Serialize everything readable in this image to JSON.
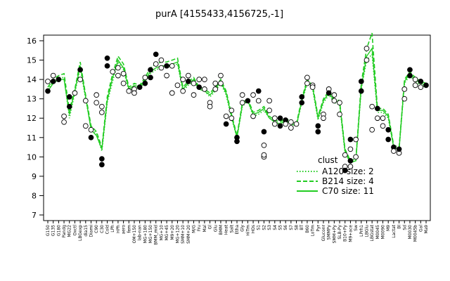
{
  "chart_data": {
    "type": "line",
    "title": "purA [4155433,4156725,-1]",
    "xlabel": "",
    "ylabel": "",
    "ylim": [
      7,
      16
    ],
    "yticks": [
      7,
      8,
      9,
      10,
      11,
      12,
      13,
      14,
      15,
      16
    ],
    "grid": false,
    "legend_position": "right-bottom (inside)",
    "categories": [
      "G150",
      "G135",
      "G180",
      "Pandg",
      "MG22",
      "Oxctl",
      "LBGexp",
      "dia15",
      "Diami",
      "C90",
      "C30",
      "Cold",
      "LPh",
      "HPh",
      "aero",
      "fem",
      "OM+150",
      "lab-nan",
      "MG+180",
      "MG+150",
      "BMM_mid",
      "MG+10",
      "MG+45",
      "M9+20",
      "MG+120",
      "SMM+10",
      "SMM+20",
      "M/G",
      "Fru",
      "Mal",
      "Gl",
      "Glu",
      "BMM",
      "Heat",
      "Salt",
      "Etha",
      "Gly",
      "HiTm",
      "HOs",
      "S1",
      "S2",
      "S3",
      "S4",
      "S5",
      "S6",
      "S7",
      "S8",
      "BT",
      "B60",
      "LoTm",
      "Pyr",
      "Gluconr",
      "SMMPy",
      "SMM+Py",
      "SLB-Py",
      "B10+Py",
      "M9+ace",
      "Sw",
      "LPrh1",
      "LBGlu",
      "LBGstat",
      "M0045",
      "M0090",
      "M9",
      "Lactat",
      "BI",
      "Sd",
      "M0030",
      "M0045b",
      "Gal",
      "Ma9"
    ],
    "cluster_label": "clust",
    "series": [
      {
        "name": "A120 size: 2",
        "color": "#22cc22",
        "style": "dotted",
        "values": [
          13.5,
          13.9,
          14.1,
          14.1,
          12.0,
          13.3,
          14.6,
          13.0,
          11.5,
          11.2,
          10.3,
          12.8,
          13.9,
          14.9,
          14.5,
          13.4,
          13.6,
          13.5,
          13.9,
          14.3,
          14.5,
          14.6,
          14.6,
          14.7,
          14.8,
          13.4,
          13.7,
          13.9,
          13.5,
          13.4,
          13.1,
          13.4,
          13.8,
          13.2,
          12.0,
          11.0,
          12.6,
          12.9,
          12.1,
          12.2,
          12.4,
          12.0,
          11.8,
          11.7,
          11.9,
          11.7,
          11.6,
          12.8,
          13.8,
          13.5,
          11.9,
          12.8,
          13.2,
          12.8,
          12.7,
          10.2,
          9.7,
          9.8,
          13.5,
          15.0,
          15.3,
          12.3,
          12.3,
          12.0,
          10.5,
          10.4,
          13.8,
          14.2,
          13.9,
          13.7,
          13.6
        ]
      },
      {
        "name": "B214 size: 4",
        "color": "#22cc22",
        "style": "dashed",
        "values": [
          13.6,
          14.0,
          14.2,
          14.3,
          12.4,
          13.5,
          14.9,
          13.2,
          11.6,
          11.3,
          10.5,
          13.1,
          14.3,
          15.2,
          14.8,
          13.6,
          13.8,
          13.7,
          14.1,
          14.6,
          14.8,
          14.9,
          14.9,
          15.0,
          15.1,
          13.6,
          13.9,
          14.1,
          13.6,
          13.5,
          13.3,
          13.6,
          14.0,
          13.4,
          12.2,
          11.1,
          12.8,
          13.0,
          12.3,
          12.4,
          12.6,
          12.1,
          11.9,
          11.8,
          12.0,
          11.8,
          11.7,
          13.0,
          14.0,
          13.7,
          12.1,
          13.0,
          13.4,
          13.0,
          12.9,
          10.4,
          9.8,
          9.9,
          13.8,
          15.6,
          16.4,
          12.5,
          12.5,
          12.2,
          10.6,
          10.5,
          14.0,
          14.4,
          14.1,
          13.9,
          13.8
        ]
      },
      {
        "name": "C70 size: 11",
        "color": "#22cc22",
        "style": "solid",
        "values": [
          13.4,
          13.8,
          14.0,
          14.0,
          12.2,
          13.4,
          14.7,
          13.1,
          11.4,
          11.1,
          10.4,
          12.9,
          14.1,
          15.0,
          14.6,
          13.5,
          13.7,
          13.6,
          14.0,
          14.4,
          14.6,
          14.7,
          14.7,
          14.8,
          14.9,
          13.5,
          13.8,
          14.0,
          13.5,
          13.4,
          13.2,
          13.5,
          13.9,
          13.3,
          12.1,
          11.0,
          12.7,
          12.9,
          12.2,
          12.3,
          12.5,
          12.0,
          11.8,
          11.7,
          11.9,
          11.7,
          11.6,
          12.9,
          13.9,
          13.6,
          12.0,
          12.9,
          13.3,
          12.9,
          12.8,
          10.3,
          9.7,
          9.8,
          13.6,
          15.2,
          15.6,
          12.4,
          12.4,
          12.1,
          10.5,
          10.4,
          13.9,
          14.3,
          14.0,
          13.8,
          13.7
        ]
      }
    ],
    "points": [
      {
        "x": "G150",
        "y": 13.4,
        "fill": "black"
      },
      {
        "x": "G150",
        "y": 13.9,
        "fill": "white"
      },
      {
        "x": "G135",
        "y": 14.2,
        "fill": "white"
      },
      {
        "x": "G135",
        "y": 13.9,
        "fill": "black"
      },
      {
        "x": "G180",
        "y": 14.0,
        "fill": "black"
      },
      {
        "x": "Pandg",
        "y": 12.1,
        "fill": "white"
      },
      {
        "x": "Pandg",
        "y": 11.8,
        "fill": "white"
      },
      {
        "x": "MG22",
        "y": 12.6,
        "fill": "black"
      },
      {
        "x": "MG22",
        "y": 13.1,
        "fill": "black"
      },
      {
        "x": "Oxctl",
        "y": 13.3,
        "fill": "white"
      },
      {
        "x": "LBGexp",
        "y": 14.5,
        "fill": "black"
      },
      {
        "x": "LBGexp",
        "y": 14.0,
        "fill": "white"
      },
      {
        "x": "dia15",
        "y": 12.9,
        "fill": "white"
      },
      {
        "x": "dia15",
        "y": 11.6,
        "fill": "white"
      },
      {
        "x": "Diami",
        "y": 11.4,
        "fill": "white"
      },
      {
        "x": "Diami",
        "y": 11.0,
        "fill": "black"
      },
      {
        "x": "C90",
        "y": 13.2,
        "fill": "white"
      },
      {
        "x": "C90",
        "y": 12.8,
        "fill": "white"
      },
      {
        "x": "C30",
        "y": 9.9,
        "fill": "black"
      },
      {
        "x": "C30",
        "y": 9.6,
        "fill": "black"
      },
      {
        "x": "C30",
        "y": 12.6,
        "fill": "white"
      },
      {
        "x": "C30",
        "y": 12.3,
        "fill": "white"
      },
      {
        "x": "Cold",
        "y": 14.7,
        "fill": "black"
      },
      {
        "x": "Cold",
        "y": 15.1,
        "fill": "black"
      },
      {
        "x": "LPh",
        "y": 14.4,
        "fill": "white"
      },
      {
        "x": "HPh",
        "y": 14.6,
        "fill": "white"
      },
      {
        "x": "HPh",
        "y": 14.2,
        "fill": "white"
      },
      {
        "x": "aero",
        "y": 13.8,
        "fill": "white"
      },
      {
        "x": "aero",
        "y": 14.3,
        "fill": "white"
      },
      {
        "x": "fem",
        "y": 13.4,
        "fill": "white"
      },
      {
        "x": "OM+150",
        "y": 13.5,
        "fill": "white"
      },
      {
        "x": "OM+150",
        "y": 13.3,
        "fill": "white"
      },
      {
        "x": "lab-nan",
        "y": 13.6,
        "fill": "black"
      },
      {
        "x": "MG+180",
        "y": 14.1,
        "fill": "white"
      },
      {
        "x": "MG+180",
        "y": 13.8,
        "fill": "black"
      },
      {
        "x": "MG+150",
        "y": 14.5,
        "fill": "black"
      },
      {
        "x": "MG+150",
        "y": 14.1,
        "fill": "black"
      },
      {
        "x": "BMM_mid",
        "y": 15.3,
        "fill": "black"
      },
      {
        "x": "BMM_mid",
        "y": 14.8,
        "fill": "white"
      },
      {
        "x": "MG+10",
        "y": 15.0,
        "fill": "white"
      },
      {
        "x": "MG+10",
        "y": 14.6,
        "fill": "white"
      },
      {
        "x": "MG+45",
        "y": 14.7,
        "fill": "black"
      },
      {
        "x": "MG+45",
        "y": 14.2,
        "fill": "white"
      },
      {
        "x": "M9+20",
        "y": 14.7,
        "fill": "white"
      },
      {
        "x": "M9+20",
        "y": 13.3,
        "fill": "white"
      },
      {
        "x": "MG+120",
        "y": 13.7,
        "fill": "white"
      },
      {
        "x": "SMM+10",
        "y": 14.0,
        "fill": "white"
      },
      {
        "x": "SMM+10",
        "y": 13.4,
        "fill": "white"
      },
      {
        "x": "SMM+20",
        "y": 13.9,
        "fill": "black"
      },
      {
        "x": "SMM+20",
        "y": 14.2,
        "fill": "white"
      },
      {
        "x": "M/G",
        "y": 13.8,
        "fill": "white"
      },
      {
        "x": "M/G",
        "y": 13.2,
        "fill": "white"
      },
      {
        "x": "Fru",
        "y": 14.0,
        "fill": "white"
      },
      {
        "x": "Fru",
        "y": 13.6,
        "fill": "black"
      },
      {
        "x": "Mal",
        "y": 14.0,
        "fill": "white"
      },
      {
        "x": "Mal",
        "y": 13.5,
        "fill": "white"
      },
      {
        "x": "Gl",
        "y": 12.8,
        "fill": "white"
      },
      {
        "x": "Gl",
        "y": 12.6,
        "fill": "white"
      },
      {
        "x": "Glu",
        "y": 13.8,
        "fill": "white"
      },
      {
        "x": "Glu",
        "y": 13.5,
        "fill": "white"
      },
      {
        "x": "BMM",
        "y": 14.2,
        "fill": "white"
      },
      {
        "x": "BMM",
        "y": 13.8,
        "fill": "white"
      },
      {
        "x": "Heat",
        "y": 12.1,
        "fill": "white"
      },
      {
        "x": "Heat",
        "y": 11.7,
        "fill": "black"
      },
      {
        "x": "Salt",
        "y": 12.4,
        "fill": "white"
      },
      {
        "x": "Salt",
        "y": 12.0,
        "fill": "white"
      },
      {
        "x": "Etha",
        "y": 11.0,
        "fill": "black"
      },
      {
        "x": "Etha",
        "y": 10.8,
        "fill": "black"
      },
      {
        "x": "Gly",
        "y": 12.8,
        "fill": "white"
      },
      {
        "x": "Gly",
        "y": 13.2,
        "fill": "white"
      },
      {
        "x": "HiTm",
        "y": 12.9,
        "fill": "black"
      },
      {
        "x": "HOs",
        "y": 13.2,
        "fill": "white"
      },
      {
        "x": "HOs",
        "y": 12.1,
        "fill": "white"
      },
      {
        "x": "S1",
        "y": 13.4,
        "fill": "black"
      },
      {
        "x": "S1",
        "y": 12.9,
        "fill": "white"
      },
      {
        "x": "S2",
        "y": 10.6,
        "fill": "white"
      },
      {
        "x": "S2",
        "y": 10.0,
        "fill": "white"
      },
      {
        "x": "S2",
        "y": 10.1,
        "fill": "white"
      },
      {
        "x": "S2",
        "y": 11.3,
        "fill": "black"
      },
      {
        "x": "S3",
        "y": 12.9,
        "fill": "white"
      },
      {
        "x": "S3",
        "y": 12.4,
        "fill": "white"
      },
      {
        "x": "S4",
        "y": 12.0,
        "fill": "white"
      },
      {
        "x": "S4",
        "y": 11.7,
        "fill": "white"
      },
      {
        "x": "S5",
        "y": 12.0,
        "fill": "black"
      },
      {
        "x": "S5",
        "y": 11.6,
        "fill": "black"
      },
      {
        "x": "S6",
        "y": 11.9,
        "fill": "black"
      },
      {
        "x": "S6",
        "y": 11.7,
        "fill": "white"
      },
      {
        "x": "S7",
        "y": 11.8,
        "fill": "white"
      },
      {
        "x": "S7",
        "y": 11.5,
        "fill": "white"
      },
      {
        "x": "S8",
        "y": 11.7,
        "fill": "white"
      },
      {
        "x": "BT",
        "y": 13.1,
        "fill": "black"
      },
      {
        "x": "BT",
        "y": 12.8,
        "fill": "black"
      },
      {
        "x": "B60",
        "y": 14.1,
        "fill": "white"
      },
      {
        "x": "B60",
        "y": 13.8,
        "fill": "white"
      },
      {
        "x": "LoTm",
        "y": 13.7,
        "fill": "white"
      },
      {
        "x": "LoTm",
        "y": 13.6,
        "fill": "white"
      },
      {
        "x": "Pyr",
        "y": 11.6,
        "fill": "black"
      },
      {
        "x": "Pyr",
        "y": 11.3,
        "fill": "black"
      },
      {
        "x": "Gluconr",
        "y": 12.2,
        "fill": "white"
      },
      {
        "x": "Gluconr",
        "y": 12.0,
        "fill": "white"
      },
      {
        "x": "SMMPy",
        "y": 13.5,
        "fill": "white"
      },
      {
        "x": "SMMPy",
        "y": 13.3,
        "fill": "black"
      },
      {
        "x": "SMM+Py",
        "y": 13.2,
        "fill": "white"
      },
      {
        "x": "SMM+Py",
        "y": 12.9,
        "fill": "white"
      },
      {
        "x": "SLB-Py",
        "y": 12.8,
        "fill": "white"
      },
      {
        "x": "SLB-Py",
        "y": 12.2,
        "fill": "white"
      },
      {
        "x": "B10+Py",
        "y": 10.1,
        "fill": "white"
      },
      {
        "x": "B10+Py",
        "y": 9.5,
        "fill": "white"
      },
      {
        "x": "B10+Py",
        "y": 9.3,
        "fill": "black"
      },
      {
        "x": "M9+ace",
        "y": 10.9,
        "fill": "black"
      },
      {
        "x": "M9+ace",
        "y": 10.4,
        "fill": "white"
      },
      {
        "x": "M9+ace",
        "y": 9.8,
        "fill": "black"
      },
      {
        "x": "M9+ace",
        "y": 9.5,
        "fill": "white"
      },
      {
        "x": "Sw",
        "y": 10.0,
        "fill": "white"
      },
      {
        "x": "Sw",
        "y": 10.9,
        "fill": "white"
      },
      {
        "x": "LPrh1",
        "y": 13.9,
        "fill": "black"
      },
      {
        "x": "LPrh1",
        "y": 13.4,
        "fill": "black"
      },
      {
        "x": "LBGlu",
        "y": 15.6,
        "fill": "white"
      },
      {
        "x": "LBGlu",
        "y": 15.0,
        "fill": "white"
      },
      {
        "x": "LBGstat",
        "y": 12.6,
        "fill": "white"
      },
      {
        "x": "LBGstat",
        "y": 11.4,
        "fill": "white"
      },
      {
        "x": "M0045",
        "y": 12.5,
        "fill": "black"
      },
      {
        "x": "M0045",
        "y": 12.0,
        "fill": "white"
      },
      {
        "x": "M0090",
        "y": 12.0,
        "fill": "white"
      },
      {
        "x": "M0090",
        "y": 11.6,
        "fill": "white"
      },
      {
        "x": "M9",
        "y": 11.4,
        "fill": "black"
      },
      {
        "x": "M9",
        "y": 10.9,
        "fill": "black"
      },
      {
        "x": "Lactat",
        "y": 10.5,
        "fill": "black"
      },
      {
        "x": "Lactat",
        "y": 10.3,
        "fill": "white"
      },
      {
        "x": "BI",
        "y": 10.2,
        "fill": "white"
      },
      {
        "x": "BI",
        "y": 10.4,
        "fill": "black"
      },
      {
        "x": "Sd",
        "y": 13.0,
        "fill": "white"
      },
      {
        "x": "Sd",
        "y": 13.5,
        "fill": "white"
      },
      {
        "x": "M0030",
        "y": 14.5,
        "fill": "black"
      },
      {
        "x": "M0030",
        "y": 14.2,
        "fill": "black"
      },
      {
        "x": "M0045b",
        "y": 14.0,
        "fill": "white"
      },
      {
        "x": "M0045b",
        "y": 13.7,
        "fill": "white"
      },
      {
        "x": "Gal",
        "y": 13.9,
        "fill": "black"
      },
      {
        "x": "Gal",
        "y": 13.6,
        "fill": "white"
      },
      {
        "x": "Ma9",
        "y": 13.7,
        "fill": "black"
      }
    ]
  }
}
